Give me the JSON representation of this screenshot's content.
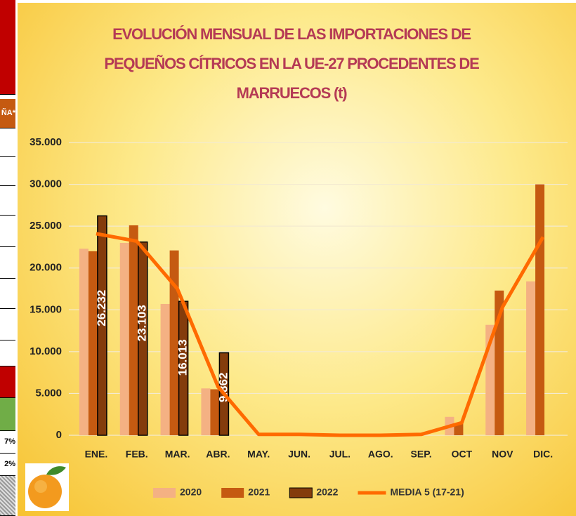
{
  "side_table": {
    "header": "ÑA*",
    "rows": [
      "7%",
      "2%"
    ]
  },
  "chart_data": {
    "type": "bar",
    "title": "EVOLUCIÓN MENSUAL DE LAS IMPORTACIONES DE PEQUEÑOS CÍTRICOS EN LA UE-27 PROCEDENTES DE MARRUECOS (t)",
    "categories": [
      "ENE.",
      "FEB.",
      "MAR.",
      "ABR.",
      "MAY.",
      "JUN.",
      "JUL.",
      "AGO.",
      "SEP.",
      "OCT",
      "NOV",
      "DIC."
    ],
    "series": [
      {
        "name": "2020",
        "type": "bar",
        "color": "#f4b183",
        "values": [
          22300,
          23000,
          15700,
          5600,
          0,
          0,
          0,
          0,
          0,
          2200,
          13200,
          18400
        ]
      },
      {
        "name": "2021",
        "type": "bar",
        "color": "#c55a11",
        "values": [
          22000,
          25100,
          22100,
          5500,
          0,
          0,
          0,
          0,
          0,
          1400,
          17300,
          30000
        ]
      },
      {
        "name": "2022",
        "type": "bar",
        "color": "#843c0c",
        "values": [
          26232,
          23103,
          16013,
          9862,
          null,
          null,
          null,
          null,
          null,
          null,
          null,
          null
        ],
        "value_labels": [
          "26.232",
          "23.103",
          "16.013",
          "9.862",
          null,
          null,
          null,
          null,
          null,
          null,
          null,
          null
        ]
      },
      {
        "name": "MEDIA 5 (17-21)",
        "type": "line",
        "color": "#ff6a00",
        "values": [
          24100,
          23200,
          17500,
          5800,
          100,
          100,
          0,
          0,
          100,
          1500,
          15300,
          23700
        ]
      }
    ],
    "ylim": [
      0,
      35000
    ],
    "yticks": [
      0,
      {
        "value": 5000,
        "label": "5.000"
      },
      {
        "value": 10000,
        "label": "10.000"
      },
      {
        "value": 15000,
        "label": "15.000"
      },
      {
        "value": 20000,
        "label": "20.000"
      },
      {
        "value": 25000,
        "label": "25.000"
      },
      {
        "value": 30000,
        "label": "30.000"
      },
      {
        "value": 35000,
        "label": "35.000"
      }
    ],
    "grid": true,
    "legend": "bottom"
  }
}
